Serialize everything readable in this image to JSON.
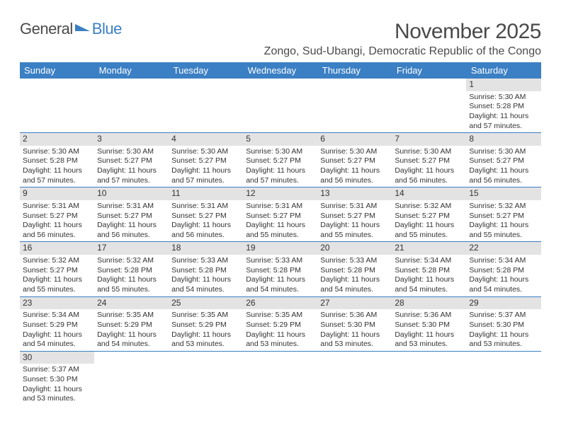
{
  "logo": {
    "part1": "General",
    "part2": "Blue"
  },
  "title": "November 2025",
  "location": "Zongo, Sud-Ubangi, Democratic Republic of the Congo",
  "colors": {
    "header_bg": "#3b7fc4",
    "header_text": "#ffffff",
    "daynum_bg": "#e3e3e3",
    "text": "#333333",
    "border": "#3b7fc4",
    "page_bg": "#ffffff"
  },
  "typography": {
    "title_fontsize": 30,
    "location_fontsize": 16,
    "dayheader_fontsize": 13,
    "daynum_fontsize": 12,
    "body_fontsize": 10.5
  },
  "day_headers": [
    "Sunday",
    "Monday",
    "Tuesday",
    "Wednesday",
    "Thursday",
    "Friday",
    "Saturday"
  ],
  "weeks": [
    [
      {
        "n": "",
        "sr": "",
        "ss": "",
        "dl": ""
      },
      {
        "n": "",
        "sr": "",
        "ss": "",
        "dl": ""
      },
      {
        "n": "",
        "sr": "",
        "ss": "",
        "dl": ""
      },
      {
        "n": "",
        "sr": "",
        "ss": "",
        "dl": ""
      },
      {
        "n": "",
        "sr": "",
        "ss": "",
        "dl": ""
      },
      {
        "n": "",
        "sr": "",
        "ss": "",
        "dl": ""
      },
      {
        "n": "1",
        "sr": "Sunrise: 5:30 AM",
        "ss": "Sunset: 5:28 PM",
        "dl": "Daylight: 11 hours and 57 minutes."
      }
    ],
    [
      {
        "n": "2",
        "sr": "Sunrise: 5:30 AM",
        "ss": "Sunset: 5:28 PM",
        "dl": "Daylight: 11 hours and 57 minutes."
      },
      {
        "n": "3",
        "sr": "Sunrise: 5:30 AM",
        "ss": "Sunset: 5:27 PM",
        "dl": "Daylight: 11 hours and 57 minutes."
      },
      {
        "n": "4",
        "sr": "Sunrise: 5:30 AM",
        "ss": "Sunset: 5:27 PM",
        "dl": "Daylight: 11 hours and 57 minutes."
      },
      {
        "n": "5",
        "sr": "Sunrise: 5:30 AM",
        "ss": "Sunset: 5:27 PM",
        "dl": "Daylight: 11 hours and 57 minutes."
      },
      {
        "n": "6",
        "sr": "Sunrise: 5:30 AM",
        "ss": "Sunset: 5:27 PM",
        "dl": "Daylight: 11 hours and 56 minutes."
      },
      {
        "n": "7",
        "sr": "Sunrise: 5:30 AM",
        "ss": "Sunset: 5:27 PM",
        "dl": "Daylight: 11 hours and 56 minutes."
      },
      {
        "n": "8",
        "sr": "Sunrise: 5:30 AM",
        "ss": "Sunset: 5:27 PM",
        "dl": "Daylight: 11 hours and 56 minutes."
      }
    ],
    [
      {
        "n": "9",
        "sr": "Sunrise: 5:31 AM",
        "ss": "Sunset: 5:27 PM",
        "dl": "Daylight: 11 hours and 56 minutes."
      },
      {
        "n": "10",
        "sr": "Sunrise: 5:31 AM",
        "ss": "Sunset: 5:27 PM",
        "dl": "Daylight: 11 hours and 56 minutes."
      },
      {
        "n": "11",
        "sr": "Sunrise: 5:31 AM",
        "ss": "Sunset: 5:27 PM",
        "dl": "Daylight: 11 hours and 56 minutes."
      },
      {
        "n": "12",
        "sr": "Sunrise: 5:31 AM",
        "ss": "Sunset: 5:27 PM",
        "dl": "Daylight: 11 hours and 55 minutes."
      },
      {
        "n": "13",
        "sr": "Sunrise: 5:31 AM",
        "ss": "Sunset: 5:27 PM",
        "dl": "Daylight: 11 hours and 55 minutes."
      },
      {
        "n": "14",
        "sr": "Sunrise: 5:32 AM",
        "ss": "Sunset: 5:27 PM",
        "dl": "Daylight: 11 hours and 55 minutes."
      },
      {
        "n": "15",
        "sr": "Sunrise: 5:32 AM",
        "ss": "Sunset: 5:27 PM",
        "dl": "Daylight: 11 hours and 55 minutes."
      }
    ],
    [
      {
        "n": "16",
        "sr": "Sunrise: 5:32 AM",
        "ss": "Sunset: 5:27 PM",
        "dl": "Daylight: 11 hours and 55 minutes."
      },
      {
        "n": "17",
        "sr": "Sunrise: 5:32 AM",
        "ss": "Sunset: 5:28 PM",
        "dl": "Daylight: 11 hours and 55 minutes."
      },
      {
        "n": "18",
        "sr": "Sunrise: 5:33 AM",
        "ss": "Sunset: 5:28 PM",
        "dl": "Daylight: 11 hours and 54 minutes."
      },
      {
        "n": "19",
        "sr": "Sunrise: 5:33 AM",
        "ss": "Sunset: 5:28 PM",
        "dl": "Daylight: 11 hours and 54 minutes."
      },
      {
        "n": "20",
        "sr": "Sunrise: 5:33 AM",
        "ss": "Sunset: 5:28 PM",
        "dl": "Daylight: 11 hours and 54 minutes."
      },
      {
        "n": "21",
        "sr": "Sunrise: 5:34 AM",
        "ss": "Sunset: 5:28 PM",
        "dl": "Daylight: 11 hours and 54 minutes."
      },
      {
        "n": "22",
        "sr": "Sunrise: 5:34 AM",
        "ss": "Sunset: 5:28 PM",
        "dl": "Daylight: 11 hours and 54 minutes."
      }
    ],
    [
      {
        "n": "23",
        "sr": "Sunrise: 5:34 AM",
        "ss": "Sunset: 5:29 PM",
        "dl": "Daylight: 11 hours and 54 minutes."
      },
      {
        "n": "24",
        "sr": "Sunrise: 5:35 AM",
        "ss": "Sunset: 5:29 PM",
        "dl": "Daylight: 11 hours and 54 minutes."
      },
      {
        "n": "25",
        "sr": "Sunrise: 5:35 AM",
        "ss": "Sunset: 5:29 PM",
        "dl": "Daylight: 11 hours and 53 minutes."
      },
      {
        "n": "26",
        "sr": "Sunrise: 5:35 AM",
        "ss": "Sunset: 5:29 PM",
        "dl": "Daylight: 11 hours and 53 minutes."
      },
      {
        "n": "27",
        "sr": "Sunrise: 5:36 AM",
        "ss": "Sunset: 5:30 PM",
        "dl": "Daylight: 11 hours and 53 minutes."
      },
      {
        "n": "28",
        "sr": "Sunrise: 5:36 AM",
        "ss": "Sunset: 5:30 PM",
        "dl": "Daylight: 11 hours and 53 minutes."
      },
      {
        "n": "29",
        "sr": "Sunrise: 5:37 AM",
        "ss": "Sunset: 5:30 PM",
        "dl": "Daylight: 11 hours and 53 minutes."
      }
    ],
    [
      {
        "n": "30",
        "sr": "Sunrise: 5:37 AM",
        "ss": "Sunset: 5:30 PM",
        "dl": "Daylight: 11 hours and 53 minutes."
      },
      {
        "n": "",
        "sr": "",
        "ss": "",
        "dl": ""
      },
      {
        "n": "",
        "sr": "",
        "ss": "",
        "dl": ""
      },
      {
        "n": "",
        "sr": "",
        "ss": "",
        "dl": ""
      },
      {
        "n": "",
        "sr": "",
        "ss": "",
        "dl": ""
      },
      {
        "n": "",
        "sr": "",
        "ss": "",
        "dl": ""
      },
      {
        "n": "",
        "sr": "",
        "ss": "",
        "dl": ""
      }
    ]
  ]
}
